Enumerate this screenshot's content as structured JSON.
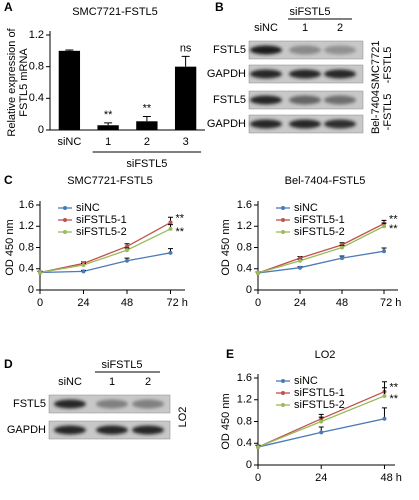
{
  "chart_data": [
    {
      "type": "bar",
      "panel": "A",
      "title": "SMC7721-FSTL5",
      "ylabel": [
        "Relative expression of",
        "FSTL5 mRNA"
      ],
      "categories": [
        "siNC",
        "1",
        "2",
        "3"
      ],
      "group_label": "siFSTL5",
      "values": [
        1,
        0.06,
        0.11,
        0.8
      ],
      "errors": [
        0.01,
        0.03,
        0.06,
        0.13
      ],
      "annotations": [
        null,
        "**",
        "**",
        "ns"
      ],
      "color": "#000000",
      "ylim": [
        0,
        1.2
      ],
      "yticks": [
        0,
        0.4,
        0.8,
        1.2
      ]
    },
    {
      "type": "line",
      "panel": "C",
      "title": "SMC7721-FSTL5",
      "ylabel": "OD 450 nm",
      "x": [
        0,
        24,
        48,
        72
      ],
      "xlim": [
        0,
        80
      ],
      "xticks": [
        0,
        24,
        48,
        {
          "value": 72,
          "label": "72 h"
        }
      ],
      "ylim": [
        0,
        1.6
      ],
      "yticks": [
        0,
        0.4,
        0.8,
        1.2,
        1.6
      ],
      "legend": "upper left",
      "series": [
        {
          "name": "siNC",
          "color": "#4a7ab8",
          "values": [
            0.33,
            0.35,
            0.55,
            0.7
          ],
          "errors": [
            0.02,
            0.02,
            0.05,
            0.08
          ]
        },
        {
          "name": "siFSTL5-1",
          "color": "#c0504d",
          "values": [
            0.33,
            0.5,
            0.82,
            1.27
          ],
          "errors": [
            0.02,
            0.03,
            0.05,
            0.1
          ],
          "annotation": "**"
        },
        {
          "name": "siFSTL5-2",
          "color": "#9bbb59",
          "values": [
            0.33,
            0.47,
            0.75,
            1.15
          ],
          "errors": [
            0.02,
            0.03,
            0.04,
            0.08
          ],
          "annotation": "**"
        }
      ]
    },
    {
      "type": "line",
      "title": "Bel-7404-FSTL5",
      "ylabel": "OD 450 nm",
      "x": [
        0,
        24,
        48,
        72
      ],
      "xlim": [
        0,
        80
      ],
      "xticks": [
        0,
        24,
        48,
        {
          "value": 72,
          "label": "72 h"
        }
      ],
      "ylim": [
        0,
        1.6
      ],
      "yticks": [
        0,
        0.4,
        0.8,
        1.2,
        1.6
      ],
      "legend": "upper left",
      "series": [
        {
          "name": "siNC",
          "color": "#4a7ab8",
          "values": [
            0.32,
            0.42,
            0.6,
            0.73
          ],
          "errors": [
            0.02,
            0.02,
            0.04,
            0.06
          ]
        },
        {
          "name": "siFSTL5-1",
          "color": "#c0504d",
          "values": [
            0.32,
            0.6,
            0.85,
            1.25
          ],
          "errors": [
            0.02,
            0.03,
            0.04,
            0.06
          ],
          "annotation": "**"
        },
        {
          "name": "siFSTL5-2",
          "color": "#9bbb59",
          "values": [
            0.32,
            0.55,
            0.8,
            1.2
          ],
          "errors": [
            0.02,
            0.03,
            0.04,
            0.06
          ],
          "annotation": "**"
        }
      ]
    },
    {
      "type": "line",
      "panel": "E",
      "title": "LO2",
      "ylabel": "OD 450 nm",
      "x": [
        0,
        24,
        48
      ],
      "xlim": [
        0,
        52
      ],
      "xticks": [
        0,
        24,
        {
          "value": 48,
          "label": "48 h"
        }
      ],
      "ylim": [
        0,
        1.6
      ],
      "yticks": [
        0,
        0.4,
        0.8,
        1.2,
        1.6
      ],
      "legend": "upper left",
      "series": [
        {
          "name": "siNC",
          "color": "#4a7ab8",
          "values": [
            0.33,
            0.6,
            0.85
          ],
          "errors": [
            0.03,
            0.1,
            0.2
          ]
        },
        {
          "name": "siFSTL5-1",
          "color": "#c0504d",
          "values": [
            0.33,
            0.85,
            1.35
          ],
          "errors": [
            0.03,
            0.08,
            0.18
          ],
          "annotation": "**"
        },
        {
          "name": "siFSTL5-2",
          "color": "#9bbb59",
          "values": [
            0.33,
            0.8,
            1.27
          ],
          "errors": [
            0.03,
            0.08,
            0.15
          ],
          "annotation": "**"
        }
      ]
    }
  ],
  "blots": [
    {
      "panel": "B",
      "group_label": "siFSTL5",
      "lanes": [
        "siNC",
        "1",
        "2"
      ],
      "rows": [
        "FSTL5",
        "GAPDH",
        "FSTL5",
        "GAPDH"
      ],
      "side_labels": [
        [
          "SMC7721",
          "-FSTL5"
        ],
        [
          "Bel-7404",
          "-FSTL5"
        ]
      ]
    },
    {
      "panel": "D",
      "group_label": "siFSTL5",
      "lanes": [
        "siNC",
        "1",
        "2"
      ],
      "rows": [
        "FSTL5",
        "GAPDH"
      ],
      "side_labels": [
        [
          "LO2"
        ]
      ]
    }
  ]
}
